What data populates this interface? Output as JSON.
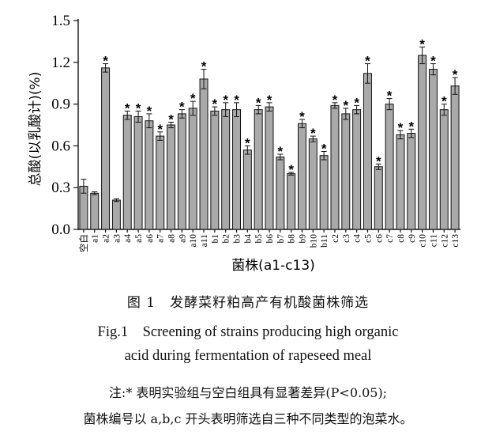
{
  "chart_data": {
    "type": "bar",
    "xlabel": "菌株(a1-c13)",
    "ylabel": "总酸(以乳酸计)(%)",
    "ylim": [
      0,
      1.5
    ],
    "yticks": [
      "0.0",
      "0.3",
      "0.6",
      "0.9",
      "1.2",
      "1.5"
    ],
    "grid": false,
    "categories": [
      "空白",
      "a1",
      "a2",
      "a3",
      "a4",
      "a5",
      "a6",
      "a7",
      "a8",
      "a9",
      "a10",
      "a11",
      "b1",
      "b2",
      "b3",
      "b4",
      "b5",
      "b6",
      "b7",
      "b8",
      "b9",
      "b10",
      "b11",
      "c2",
      "c3",
      "c4",
      "c5",
      "c6",
      "c7",
      "c8",
      "c9",
      "c10",
      "c11",
      "c12",
      "c13"
    ],
    "values": [
      0.31,
      0.26,
      1.16,
      0.21,
      0.82,
      0.81,
      0.78,
      0.67,
      0.75,
      0.83,
      0.87,
      1.08,
      0.85,
      0.86,
      0.86,
      0.57,
      0.86,
      0.88,
      0.52,
      0.4,
      0.76,
      0.65,
      0.53,
      0.89,
      0.83,
      0.86,
      1.12,
      0.45,
      0.9,
      0.68,
      0.69,
      1.25,
      1.15,
      0.86,
      1.03
    ],
    "errors": [
      0.05,
      0.01,
      0.03,
      0.01,
      0.03,
      0.04,
      0.05,
      0.03,
      0.02,
      0.03,
      0.05,
      0.07,
      0.03,
      0.05,
      0.05,
      0.03,
      0.03,
      0.03,
      0.02,
      0.01,
      0.03,
      0.02,
      0.03,
      0.02,
      0.04,
      0.03,
      0.07,
      0.02,
      0.04,
      0.03,
      0.03,
      0.06,
      0.04,
      0.04,
      0.06
    ],
    "significant": [
      false,
      false,
      true,
      false,
      true,
      true,
      true,
      true,
      true,
      true,
      true,
      true,
      true,
      true,
      true,
      true,
      true,
      true,
      true,
      true,
      true,
      true,
      true,
      true,
      true,
      true,
      true,
      true,
      true,
      true,
      true,
      true,
      true,
      true,
      true
    ],
    "star_symbol": "*",
    "bar_color": "#a9a9a9"
  },
  "caption": {
    "title_cn": "图 1　发酵菜籽粕高产有机酸菌株筛选",
    "title_en_line1": "Fig.1　Screening of strains producing high organic",
    "title_en_line2": "acid during fermentation of rapeseed meal",
    "note_line1": "注:* 表明实验组与空白组具有显著差异(P<0.05);",
    "note_line2": "菌株编号以 a,b,c 开头表明筛选自三种不同类型的泡菜水。"
  }
}
